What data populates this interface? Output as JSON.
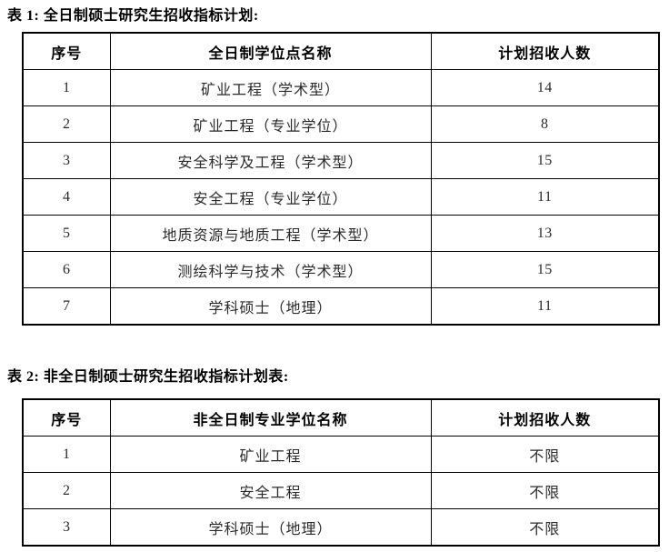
{
  "page": {
    "background_color": "#ffffff",
    "text_color": "#000000",
    "border_color": "#000000"
  },
  "table1": {
    "title": "表 1: 全日制硕士研究生招收指标计划:",
    "headers": [
      "序号",
      "全日制学位点名称",
      "计划招收人数"
    ],
    "rows": [
      [
        "1",
        "矿业工程（学术型）",
        "14"
      ],
      [
        "2",
        "矿业工程（专业学位）",
        "8"
      ],
      [
        "3",
        "安全科学及工程（学术型）",
        "15"
      ],
      [
        "4",
        "安全工程（专业学位）",
        "11"
      ],
      [
        "5",
        "地质资源与地质工程（学术型）",
        "13"
      ],
      [
        "6",
        "测绘科学与技术（学术型）",
        "15"
      ],
      [
        "7",
        "学科硕士（地理）",
        "11"
      ]
    ]
  },
  "table2": {
    "title": "表 2: 非全日制硕士研究生招收指标计划表:",
    "headers": [
      "序号",
      "非全日制专业学位名称",
      "计划招收人数"
    ],
    "rows": [
      [
        "1",
        "矿业工程",
        "不限"
      ],
      [
        "2",
        "安全工程",
        "不限"
      ],
      [
        "3",
        "学科硕士（地理）",
        "不限"
      ]
    ]
  }
}
